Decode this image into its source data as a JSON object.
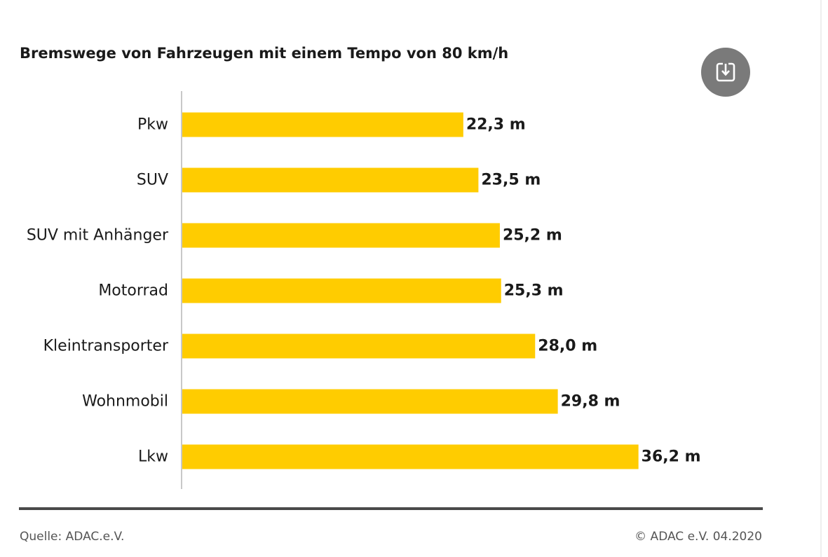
{
  "chart_data": {
    "type": "bar",
    "orientation": "horizontal",
    "title": "Bremswege von Fahrzeugen mit einem Tempo von 80 km/h",
    "categories": [
      "Pkw",
      "SUV",
      "SUV mit Anhänger",
      "Motorrad",
      "Kleintransporter",
      "Wohnmobil",
      "Lkw"
    ],
    "values": [
      22.3,
      23.5,
      25.2,
      25.3,
      28.0,
      29.8,
      36.2
    ],
    "value_labels": [
      "22,3 m",
      "23,5 m",
      "25,2 m",
      "25,3 m",
      "28,0 m",
      "29,8 m",
      "36,2 m"
    ],
    "unit": "m",
    "xlabel": "",
    "ylabel": "",
    "xlim": [
      0,
      45.9
    ],
    "grid": false,
    "legend": "none",
    "bar_color": "#ffcc00"
  },
  "header": {
    "download_icon": "download-icon"
  },
  "footer": {
    "source": "Quelle: ADAC.e.V.",
    "copyright": "© ADAC e.V. 04.2020"
  },
  "colors": {
    "bar": "#ffcc00",
    "text": "#1a1a1a",
    "muted": "#555555",
    "axis": "#c8c8c8",
    "button": "#7a7a7a"
  }
}
